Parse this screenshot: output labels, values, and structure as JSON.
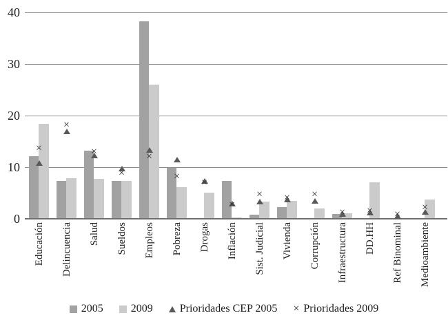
{
  "chart_data": {
    "type": "bar",
    "title": "",
    "xlabel": "",
    "ylabel": "",
    "categories": [
      "Educación",
      "Delincuencia",
      "Salud",
      "Sueldos",
      "Empleos",
      "Pobreza",
      "Drogas",
      "Inflación",
      "Sist. Judicial",
      "Vivienda",
      "Corrupción",
      "Infraestructura",
      "DD.HH",
      "Ref Binominal",
      "Medioambiente"
    ],
    "series": [
      {
        "name": "2005",
        "type": "bar",
        "marker": "square",
        "color": "#a2a2a2",
        "values": [
          12.1,
          7.3,
          13.2,
          7.3,
          38.3,
          9.9,
          0,
          7.3,
          0.8,
          2.3,
          0,
          0.9,
          0,
          0,
          0
        ]
      },
      {
        "name": "2009",
        "type": "bar",
        "marker": "square",
        "color": "#cbcbcb",
        "values": [
          18.4,
          7.9,
          7.7,
          7.3,
          26.0,
          6.2,
          5.1,
          0.3,
          3.3,
          3.5,
          2.0,
          1.1,
          7.1,
          0,
          3.7
        ]
      },
      {
        "name": "Prioridades CEP 2005",
        "type": "scatter",
        "marker": "triangle",
        "color": "#595959",
        "values": [
          10.8,
          16.9,
          12.3,
          9.7,
          13.3,
          11.5,
          7.4,
          2.9,
          3.4,
          3.7,
          3.5,
          1.0,
          1.2,
          0.6,
          1.4
        ]
      },
      {
        "name": "Prioridades 2009",
        "type": "scatter",
        "marker": "x",
        "color": "#303030",
        "values": [
          13.6,
          18.1,
          12.9,
          8.8,
          12.0,
          8.1,
          6.9,
          2.7,
          4.7,
          4.0,
          4.7,
          1.2,
          1.5,
          0.8,
          2.2
        ]
      }
    ],
    "ylim": [
      0,
      40
    ],
    "yticks": [
      0,
      10,
      20,
      30,
      40
    ],
    "grid": true,
    "legend_position": "bottom",
    "colors": {
      "gridline": "#8a8a8a",
      "baseline": "#6f6f6f",
      "text": "#1c1c1c",
      "background": "#ffffff"
    }
  }
}
